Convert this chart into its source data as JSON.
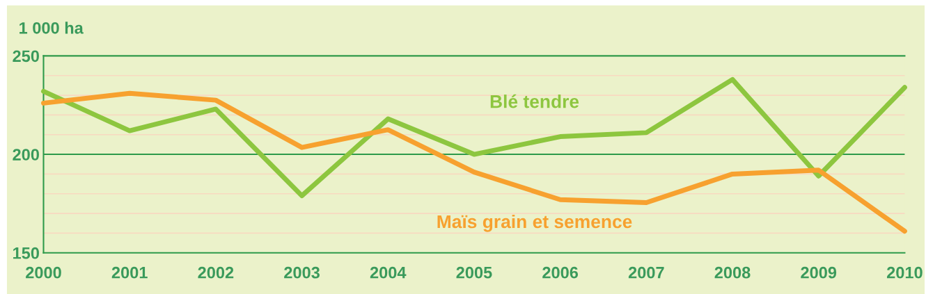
{
  "chart_data": {
    "type": "line",
    "ylabel": "1 000 ha",
    "x": [
      2000,
      2001,
      2002,
      2003,
      2004,
      2005,
      2006,
      2007,
      2008,
      2009,
      2010
    ],
    "series": [
      {
        "name": "Blé tendre",
        "color": "#8dc63f",
        "values": [
          232,
          212,
          223,
          179,
          218,
          200,
          209,
          211,
          238,
          189,
          234
        ]
      },
      {
        "name": "Maïs grain et semence",
        "color": "#f7a12f",
        "values": [
          226,
          231,
          227.5,
          203.5,
          212.5,
          191,
          177,
          175.5,
          190,
          192,
          161
        ]
      }
    ],
    "xlim": [
      2000,
      2010
    ],
    "xticks": [
      2000,
      2001,
      2002,
      2003,
      2004,
      2005,
      2006,
      2007,
      2008,
      2009,
      2010
    ],
    "ylim": [
      150,
      250
    ],
    "yticks": [
      150,
      {
        "value": 160,
        "label": null
      },
      {
        "value": 170,
        "label": null
      },
      {
        "value": 180,
        "label": null
      },
      {
        "value": 190,
        "label": null
      },
      200,
      {
        "value": 210,
        "label": null
      },
      {
        "value": 220,
        "label": null
      },
      {
        "value": 230,
        "label": null
      },
      {
        "value": 240,
        "label": null
      },
      250
    ],
    "ref_lines": [
      {
        "axis": "y",
        "value": 200,
        "color": "#2e9a4a"
      }
    ],
    "grid": "y",
    "legend": false,
    "marker": "none",
    "line_style": "solid"
  }
}
